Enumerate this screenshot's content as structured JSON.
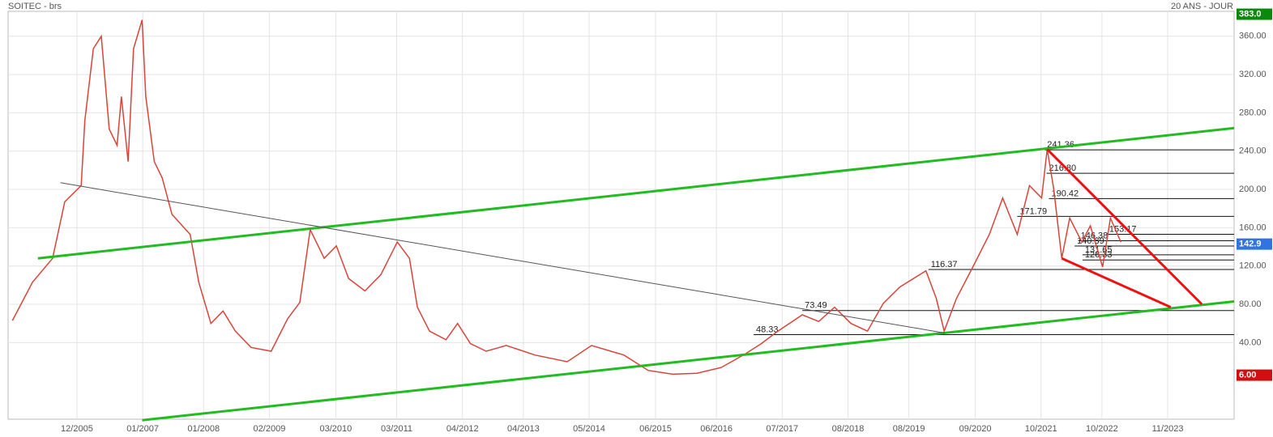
{
  "chart_data": {
    "type": "line",
    "title": "SOITEC - brs",
    "subtitle": "20 ANS - JOUR",
    "xlim": [
      2004.79,
      2024.92
    ],
    "ylim": [
      -40,
      386
    ],
    "xticks": [
      {
        "value": 2005.92,
        "label": "12/2005"
      },
      {
        "value": 2007.0,
        "label": "01/2007"
      },
      {
        "value": 2008.0,
        "label": "01/2008"
      },
      {
        "value": 2009.08,
        "label": "02/2009"
      },
      {
        "value": 2010.17,
        "label": "03/2010"
      },
      {
        "value": 2011.17,
        "label": "03/2011"
      },
      {
        "value": 2012.25,
        "label": "04/2012"
      },
      {
        "value": 2013.25,
        "label": "04/2013"
      },
      {
        "value": 2014.33,
        "label": "05/2014"
      },
      {
        "value": 2015.42,
        "label": "06/2015"
      },
      {
        "value": 2016.42,
        "label": "06/2016"
      },
      {
        "value": 2017.5,
        "label": "07/2017"
      },
      {
        "value": 2018.58,
        "label": "08/2018"
      },
      {
        "value": 2019.58,
        "label": "08/2019"
      },
      {
        "value": 2020.67,
        "label": "09/2020"
      },
      {
        "value": 2021.75,
        "label": "10/2021"
      },
      {
        "value": 2022.75,
        "label": "10/2022"
      },
      {
        "value": 2023.83,
        "label": "11/2023"
      }
    ],
    "yticks": [
      {
        "value": 40,
        "label": "40.00"
      },
      {
        "value": 80,
        "label": "80.00"
      },
      {
        "value": 120,
        "label": "120.00"
      },
      {
        "value": 160,
        "label": "160.00"
      },
      {
        "value": 200,
        "label": "200.00"
      },
      {
        "value": 240,
        "label": "240.00"
      },
      {
        "value": 280,
        "label": "280.00"
      },
      {
        "value": 320,
        "label": "320.00"
      },
      {
        "value": 360,
        "label": "360.00"
      }
    ],
    "grid": true,
    "series": [
      {
        "color": "#d9443a",
        "x": [
          2004.86,
          2005.19,
          2005.52,
          2005.72,
          2005.99,
          2006.05,
          2006.19,
          2006.32,
          2006.45,
          2006.58,
          2006.65,
          2006.76,
          2006.85,
          2006.99,
          2007.05,
          2007.19,
          2007.32,
          2007.48,
          2007.65,
          2007.78,
          2007.92,
          2008.12,
          2008.32,
          2008.52,
          2008.78,
          2009.11,
          2009.38,
          2009.58,
          2009.75,
          2009.98,
          2010.18,
          2010.38,
          2010.65,
          2010.91,
          2011.18,
          2011.38,
          2011.51,
          2011.71,
          2011.98,
          2012.17,
          2012.38,
          2012.64,
          2012.97,
          2013.44,
          2013.97,
          2014.37,
          2014.9,
          2015.3,
          2015.7,
          2016.1,
          2016.5,
          2016.89,
          2017.16,
          2017.43,
          2017.83,
          2018.1,
          2018.36,
          2018.63,
          2018.9,
          2019.16,
          2019.43,
          2019.86,
          2020.03,
          2020.16,
          2020.36,
          2020.63,
          2020.9,
          2021.12,
          2021.36,
          2021.56,
          2021.76,
          2021.85,
          2021.96,
          2022.09,
          2022.22,
          2022.42,
          2022.56,
          2022.76,
          2022.89,
          2023.06
        ],
        "values": [
          63,
          103,
          128,
          187,
          204,
          272,
          347,
          360,
          263,
          246,
          297,
          229,
          347,
          377,
          297,
          229,
          212,
          174,
          162,
          153,
          103,
          60,
          73,
          52,
          35,
          31,
          65,
          82,
          158,
          128,
          141,
          107,
          94,
          111,
          145,
          128,
          77,
          52,
          43,
          60,
          39,
          31,
          37,
          27,
          20,
          37,
          27,
          11,
          7,
          8,
          14,
          28,
          39,
          52,
          69,
          62,
          77,
          60,
          52,
          81,
          98,
          115,
          86,
          52,
          86,
          119,
          153,
          191,
          153,
          204,
          191,
          242,
          200,
          128,
          170,
          145,
          162,
          119,
          170,
          145
        ]
      }
    ],
    "trendlines": [
      {
        "color": "#22bb22",
        "x": [
          2005.28,
          2024.92
        ],
        "values": [
          128,
          264
        ]
      },
      {
        "color": "#22bb22",
        "x": [
          2006.99,
          2024.92
        ],
        "values": [
          -41,
          83
        ]
      },
      {
        "color": "#555555",
        "x": [
          2005.65,
          2020.17
        ],
        "values": [
          207,
          50
        ]
      },
      {
        "color": "#ee1111",
        "x": [
          2021.85,
          2024.39
        ],
        "values": [
          242,
          80
        ]
      },
      {
        "color": "#ee1111",
        "x": [
          2022.09,
          2023.88
        ],
        "values": [
          128,
          77
        ]
      }
    ],
    "levels": {
      "values": [
        241.36,
        216.8,
        190.42,
        171.79,
        153.17,
        146.38,
        140.89,
        131.65,
        126.33,
        116.37,
        73.49,
        48.33
      ],
      "value_labels": [
        "241.36",
        "216.80",
        "190.42",
        "171.79",
        "153.17",
        "146.38",
        "140.89",
        "131.65",
        "126.33",
        "116.37",
        "73.49",
        "48.33"
      ],
      "starts": [
        2021.81,
        2021.84,
        2021.88,
        2021.36,
        2022.83,
        2022.36,
        2022.3,
        2022.43,
        2022.43,
        2019.9,
        2017.83,
        2017.03
      ]
    },
    "markers": [
      {
        "value": 383.0,
        "label": "383.0",
        "color": "#0a8a0a"
      },
      {
        "value": 142.9,
        "label": "142.9",
        "color": "#2f74e0"
      },
      {
        "value": 6.0,
        "label": "6.00",
        "color": "#d01010"
      }
    ]
  }
}
